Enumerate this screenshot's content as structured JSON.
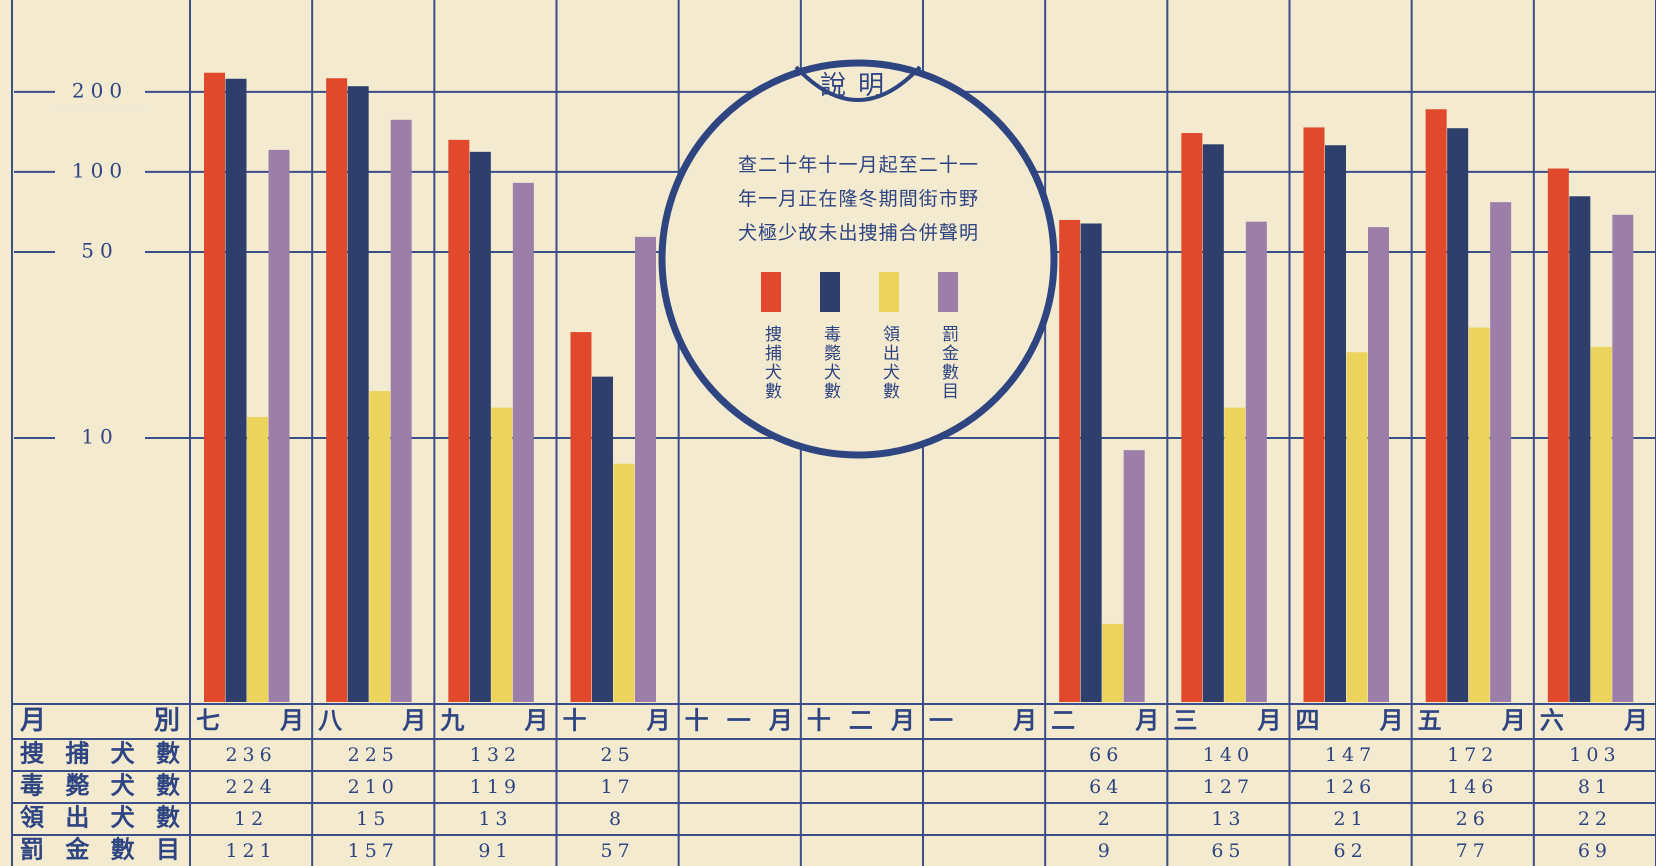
{
  "chart_data": {
    "type": "bar",
    "log_scale": true,
    "grid": true,
    "legend_title": "說明",
    "legend_text": [
      "查二十年十一月起至二十一",
      "年一月正在隆冬期間街市野",
      "犬極少故未出捜捕合併聲明"
    ],
    "row_header": "月別",
    "categories": [
      "七月",
      "八月",
      "九月",
      "十月",
      "十一月",
      "十二月",
      "一月",
      "二月",
      "三月",
      "四月",
      "五月",
      "六月"
    ],
    "series": [
      {
        "name": "捜捕犬數",
        "color": "#e0492b",
        "values": [
          236,
          225,
          132,
          25,
          null,
          null,
          null,
          66,
          140,
          147,
          172,
          103
        ]
      },
      {
        "name": "毒斃犬數",
        "color": "#2e3f6c",
        "values": [
          224,
          210,
          119,
          17,
          null,
          null,
          null,
          64,
          127,
          126,
          146,
          81
        ]
      },
      {
        "name": "領出犬數",
        "color": "#ecd35c",
        "values": [
          12,
          15,
          13,
          8,
          null,
          null,
          null,
          2,
          13,
          21,
          26,
          22
        ]
      },
      {
        "name": "罰金數目",
        "color": "#9b7fa8",
        "values": [
          121,
          157,
          91,
          57,
          null,
          null,
          null,
          9,
          65,
          62,
          77,
          69
        ]
      }
    ],
    "ylim": [
      1,
      300
    ],
    "yticks": [
      10,
      50,
      100,
      200
    ]
  }
}
